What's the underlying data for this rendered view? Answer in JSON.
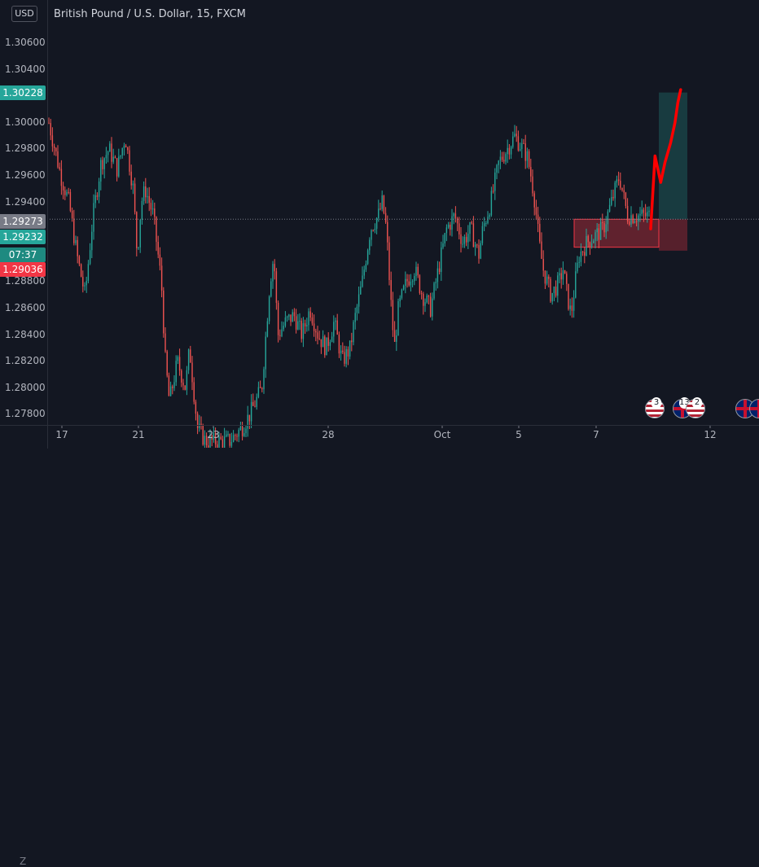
{
  "header": {
    "title": "British Pound / U.S. Dollar, 15, FXCM",
    "currency_button": "USD",
    "scale_mode_label": "Z"
  },
  "price_tags": {
    "target": {
      "value": "1.30228",
      "color": "#26a69a"
    },
    "last_close": {
      "value": "1.29273",
      "color": "#787b86"
    },
    "current": {
      "value": "1.29232",
      "color": "#26a69a"
    },
    "countdown": {
      "value": "07:37",
      "color": "#26a69a"
    },
    "stop": {
      "value": "1.29036",
      "color": "#f23645"
    }
  },
  "events": [
    {
      "icon": "us-flag-icon",
      "count": "3"
    },
    {
      "icon": "uk-flag-icon",
      "count": "13"
    },
    {
      "icon": "us-flag-icon",
      "count": "2"
    },
    {
      "icon": "uk-flag-icon",
      "count": ""
    },
    {
      "icon": "uk-flag-icon",
      "count": ""
    }
  ],
  "colors": {
    "background": "#131722",
    "up": "#26a69a",
    "down": "#ef5350",
    "drawing": "#ff0000",
    "profit_zone": "#26a69a",
    "loss_zone": "#f23645"
  },
  "chart_data": {
    "type": "candlestick",
    "title": "British Pound / U.S. Dollar, 15, FXCM",
    "ylim": [
      1.277,
      1.308
    ],
    "y_ticks": [
      1.278,
      1.28,
      1.282,
      1.284,
      1.286,
      1.288,
      1.294,
      1.296,
      1.298,
      1.3,
      1.304,
      1.306
    ],
    "x_ticks": [
      "17",
      "21",
      "23",
      "28",
      "Oct",
      "5",
      "7",
      "12"
    ],
    "price_path": [
      [
        0,
        1.3
      ],
      [
        3,
        1.296
      ],
      [
        5,
        1.294
      ],
      [
        7,
        1.29
      ],
      [
        9,
        1.287
      ],
      [
        11,
        1.293
      ],
      [
        13,
        1.297
      ],
      [
        15,
        1.298
      ],
      [
        17,
        1.2965
      ],
      [
        19,
        1.299
      ],
      [
        20,
        1.297
      ],
      [
        21,
        1.295
      ],
      [
        22,
        1.29
      ],
      [
        23,
        1.294
      ],
      [
        24,
        1.295
      ],
      [
        26,
        1.293
      ],
      [
        28,
        1.288
      ],
      [
        29,
        1.282
      ],
      [
        30,
        1.279
      ],
      [
        32,
        1.282
      ],
      [
        34,
        1.28
      ],
      [
        35,
        1.283
      ],
      [
        36,
        1.28
      ],
      [
        37,
        1.277
      ],
      [
        39,
        1.276
      ],
      [
        42,
        1.276
      ],
      [
        45,
        1.276
      ],
      [
        48,
        1.277
      ],
      [
        50,
        1.278
      ],
      [
        53,
        1.28
      ],
      [
        55,
        1.288
      ],
      [
        56,
        1.29
      ],
      [
        57,
        1.284
      ],
      [
        59,
        1.285
      ],
      [
        61,
        1.2855
      ],
      [
        63,
        1.284
      ],
      [
        65,
        1.286
      ],
      [
        67,
        1.284
      ],
      [
        69,
        1.283
      ],
      [
        71,
        1.285
      ],
      [
        73,
        1.282
      ],
      [
        75,
        1.283
      ],
      [
        76,
        1.285
      ],
      [
        78,
        1.288
      ],
      [
        80,
        1.292
      ],
      [
        82,
        1.293
      ],
      [
        83,
        1.294
      ],
      [
        84,
        1.292
      ],
      [
        85,
        1.287
      ],
      [
        86,
        1.283
      ],
      [
        87,
        1.286
      ],
      [
        89,
        1.288
      ],
      [
        91,
        1.289
      ],
      [
        93,
        1.287
      ],
      [
        95,
        1.286
      ],
      [
        97,
        1.289
      ],
      [
        99,
        1.292
      ],
      [
        101,
        1.293
      ],
      [
        103,
        1.291
      ],
      [
        105,
        1.292
      ],
      [
        107,
        1.29
      ],
      [
        108,
        1.292
      ],
      [
        110,
        1.294
      ],
      [
        112,
        1.297
      ],
      [
        114,
        1.298
      ],
      [
        116,
        1.299
      ],
      [
        117,
        1.2985
      ],
      [
        119,
        1.2975
      ],
      [
        120,
        1.296
      ],
      [
        121,
        1.294
      ],
      [
        122,
        1.291
      ],
      [
        123,
        1.289
      ],
      [
        124,
        1.288
      ],
      [
        125,
        1.287
      ],
      [
        127,
        1.288
      ],
      [
        128,
        1.289
      ],
      [
        129,
        1.287
      ],
      [
        130,
        1.2855
      ],
      [
        131,
        1.288
      ],
      [
        132,
        1.29
      ],
      [
        134,
        1.291
      ],
      [
        136,
        1.2915
      ],
      [
        138,
        1.292
      ],
      [
        140,
        1.294
      ],
      [
        142,
        1.296
      ],
      [
        144,
        1.293
      ]
    ],
    "price_path_x_range": [
      0,
      150
    ],
    "drawings": {
      "long_position": {
        "entry": 1.29273,
        "target": 1.30228,
        "stop": 1.29036
      },
      "rectangle": {
        "top": 1.29273,
        "bottom": 1.29062
      },
      "forecast_path": [
        [
          0,
          1.292
        ],
        [
          3,
          1.2975
        ],
        [
          7,
          1.2955
        ],
        [
          10,
          1.297
        ],
        [
          14,
          1.2985
        ],
        [
          17,
          1.3
        ],
        [
          19,
          1.3015
        ],
        [
          21,
          1.3025
        ]
      ]
    }
  }
}
